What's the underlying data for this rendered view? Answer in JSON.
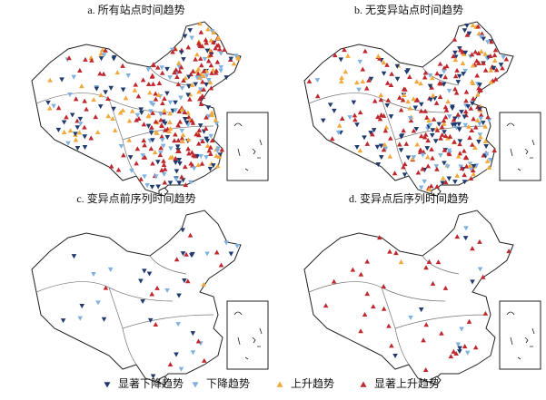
{
  "panels": [
    {
      "title": "a. 所有站点时间趋势"
    },
    {
      "title": "b. 无变异站点时间趋势"
    },
    {
      "title": "c. 变异点前序列时间趋势"
    },
    {
      "title": "d. 变异点后序列时间趋势"
    }
  ],
  "legend": {
    "items": [
      {
        "label": "显著下降趋势",
        "color": "#1f3a6e",
        "direction": "down"
      },
      {
        "label": "下降趋势",
        "color": "#7fb2e0",
        "direction": "down"
      },
      {
        "label": "上升趋势",
        "color": "#f2a93b",
        "direction": "up"
      },
      {
        "label": "显著上升趋势",
        "color": "#c0272d",
        "direction": "up"
      }
    ]
  }
}
